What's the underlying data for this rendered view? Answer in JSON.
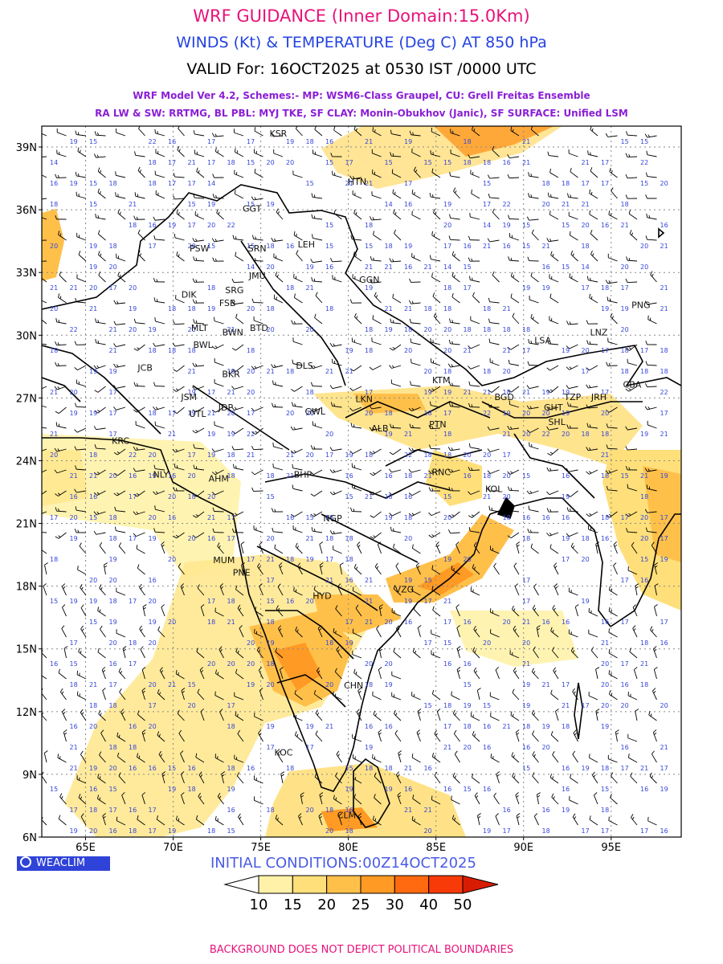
{
  "header": {
    "title": "WRF GUIDANCE (Inner Domain:15.0Km)",
    "subtitle": "WINDS (Kt) & TEMPERATURE (Deg C) AT 850 hPa",
    "valid": "VALID For: 16OCT2025 at 0530 IST /0000 UTC",
    "model_line1": "WRF Model Ver 4.2, Schemes:- MP: WSM6-Class Graupel, CU: Grell Freitas Ensemble",
    "model_line2": "RA LW & SW: RRTMG, BL PBL: MYJ TKE, SF CLAY: Monin-Obukhov (Janic), SF SURFACE: Unified LSM"
  },
  "map": {
    "lon_range": [
      62.5,
      99.0
    ],
    "lat_range": [
      6.0,
      40.0
    ],
    "lat_ticks": [
      "39N",
      "36N",
      "33N",
      "30N",
      "27N",
      "24N",
      "21N",
      "18N",
      "15N",
      "12N",
      "9N",
      "6N"
    ],
    "lon_ticks": [
      "65E",
      "70E",
      "75E",
      "80E",
      "85E",
      "90E",
      "95E"
    ],
    "grid": true,
    "stations": [
      {
        "code": "KSR",
        "lon": 76.0,
        "lat": 39.5
      },
      {
        "code": "HTN",
        "lon": 80.5,
        "lat": 37.2
      },
      {
        "code": "GGT",
        "lon": 74.5,
        "lat": 35.9
      },
      {
        "code": "LEH",
        "lon": 77.6,
        "lat": 34.2
      },
      {
        "code": "PSW",
        "lon": 71.5,
        "lat": 34.0
      },
      {
        "code": "SRN",
        "lon": 74.8,
        "lat": 34.0
      },
      {
        "code": "JMU",
        "lon": 74.8,
        "lat": 32.7
      },
      {
        "code": "GGN",
        "lon": 81.2,
        "lat": 32.5
      },
      {
        "code": "DIK",
        "lon": 70.9,
        "lat": 31.8
      },
      {
        "code": "SRG",
        "lon": 73.5,
        "lat": 32.0
      },
      {
        "code": "FSB",
        "lon": 73.1,
        "lat": 31.4
      },
      {
        "code": "PNG",
        "lon": 96.7,
        "lat": 31.3
      },
      {
        "code": "MLT",
        "lon": 71.5,
        "lat": 30.2
      },
      {
        "code": "BWN",
        "lon": 73.4,
        "lat": 30.0
      },
      {
        "code": "BTD",
        "lon": 74.9,
        "lat": 30.2
      },
      {
        "code": "LNZ",
        "lon": 94.3,
        "lat": 30.0
      },
      {
        "code": "LSA",
        "lon": 91.1,
        "lat": 29.6
      },
      {
        "code": "BWL",
        "lon": 71.7,
        "lat": 29.4
      },
      {
        "code": "JCB",
        "lon": 68.4,
        "lat": 28.3
      },
      {
        "code": "BKR",
        "lon": 73.3,
        "lat": 28.0
      },
      {
        "code": "DLS",
        "lon": 77.5,
        "lat": 28.4
      },
      {
        "code": "KTM",
        "lon": 85.3,
        "lat": 27.7
      },
      {
        "code": "JSM",
        "lon": 70.9,
        "lat": 26.9
      },
      {
        "code": "BGD",
        "lon": 88.9,
        "lat": 26.9
      },
      {
        "code": "LKN",
        "lon": 80.9,
        "lat": 26.8
      },
      {
        "code": "TZP",
        "lon": 92.8,
        "lat": 26.9
      },
      {
        "code": "JRH",
        "lon": 94.3,
        "lat": 26.9
      },
      {
        "code": "CBA",
        "lon": 96.2,
        "lat": 27.5
      },
      {
        "code": "JDP",
        "lon": 73.0,
        "lat": 26.4
      },
      {
        "code": "UTL",
        "lon": 71.4,
        "lat": 26.1
      },
      {
        "code": "GWL",
        "lon": 78.1,
        "lat": 26.2
      },
      {
        "code": "GHT",
        "lon": 91.7,
        "lat": 26.4
      },
      {
        "code": "SHL",
        "lon": 91.9,
        "lat": 25.7
      },
      {
        "code": "ALB",
        "lon": 81.8,
        "lat": 25.4
      },
      {
        "code": "PTN",
        "lon": 85.1,
        "lat": 25.6
      },
      {
        "code": "KRC",
        "lon": 67.0,
        "lat": 24.8
      },
      {
        "code": "RNC",
        "lon": 85.3,
        "lat": 23.3
      },
      {
        "code": "BHP",
        "lon": 77.4,
        "lat": 23.2
      },
      {
        "code": "AHM",
        "lon": 72.6,
        "lat": 23.0
      },
      {
        "code": "NLY",
        "lon": 69.3,
        "lat": 23.2
      },
      {
        "code": "KOL",
        "lon": 88.3,
        "lat": 22.5
      },
      {
        "code": "NGP",
        "lon": 79.1,
        "lat": 21.1
      },
      {
        "code": "MUM",
        "lon": 72.9,
        "lat": 19.1
      },
      {
        "code": "PNE",
        "lon": 73.9,
        "lat": 18.5
      },
      {
        "code": "VZG",
        "lon": 83.2,
        "lat": 17.7
      },
      {
        "code": "HYD",
        "lon": 78.5,
        "lat": 17.4
      },
      {
        "code": "CHN",
        "lon": 80.3,
        "lat": 13.1
      },
      {
        "code": "KOC",
        "lon": 76.3,
        "lat": 9.9
      },
      {
        "code": "CLM",
        "lon": 79.9,
        "lat": 6.9
      }
    ]
  },
  "colorbar": {
    "levels": [
      "10",
      "15",
      "20",
      "25",
      "30",
      "40",
      "50"
    ],
    "colors": [
      "#ffffff",
      "#fff2a8",
      "#ffdf7a",
      "#ffc04a",
      "#ff9a24",
      "#ff6a10",
      "#f83a08",
      "#d81c04"
    ]
  },
  "logo": {
    "label": "WEACLIM",
    "icon": "copyright-icon"
  },
  "initial_conditions": "INITIAL CONDITIONS:00Z14OCT2025",
  "footer": "BACKGROUND DOES NOT DEPICT POLITICAL BOUNDARIES"
}
